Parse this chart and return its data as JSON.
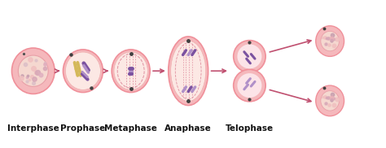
{
  "bg_color": "#ffffff",
  "cell_outer_color": "#f0909a",
  "cell_outer_light": "#f5b8bc",
  "cell_inner_color": "#fde8e0",
  "nucleus_fill": "#fdf0ee",
  "nucleus_stroke": "#f0909a",
  "arrow_color": "#c05070",
  "chrom_purple_dark": "#7b52a0",
  "chrom_purple_light": "#b090c8",
  "chrom_yellow": "#d4b85a",
  "spindle_color": "#e090a0",
  "dot_color": "#404040",
  "label_color": "#111111",
  "labels": [
    "Interphase",
    "Prophase",
    "Metaphase",
    "Anaphase",
    "Telophase"
  ],
  "label_fontsize": 7.5,
  "label_fontweight": "bold",
  "figsize": [
    4.74,
    1.82
  ],
  "dpi": 100
}
